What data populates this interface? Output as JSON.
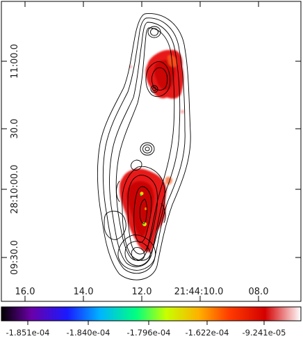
{
  "chart_data": {
    "type": "heatmap",
    "title": "",
    "xlabel": "",
    "ylabel": "",
    "x_ticks": [
      "16.0",
      "14.0",
      "12.0",
      "21:44:10.0",
      "08.0"
    ],
    "y_ticks": [
      "11:00.0",
      "30.0",
      "28:10:00.0",
      "09:30.0"
    ],
    "colorbar": {
      "tick_labels": [
        "-1.851e-04",
        "-1.840e-04",
        "-1.796e-04",
        "-1.622e-04",
        "-9.241e-05"
      ],
      "colormap": [
        "#000000",
        "#6a00a8",
        "#1a1aff",
        "#00b4ff",
        "#00ff80",
        "#c8ff00",
        "#ffb000",
        "#ff3c00",
        "#d40000",
        "#ffffff"
      ]
    },
    "emission_regions": [
      {
        "name": "north lobe",
        "peak_color": "#e60000"
      },
      {
        "name": "south lobe",
        "peak_color": "#e60000",
        "core_color": "#33ff33"
      }
    ],
    "contours": {
      "color": "#000000",
      "levels_shown": 8
    }
  }
}
